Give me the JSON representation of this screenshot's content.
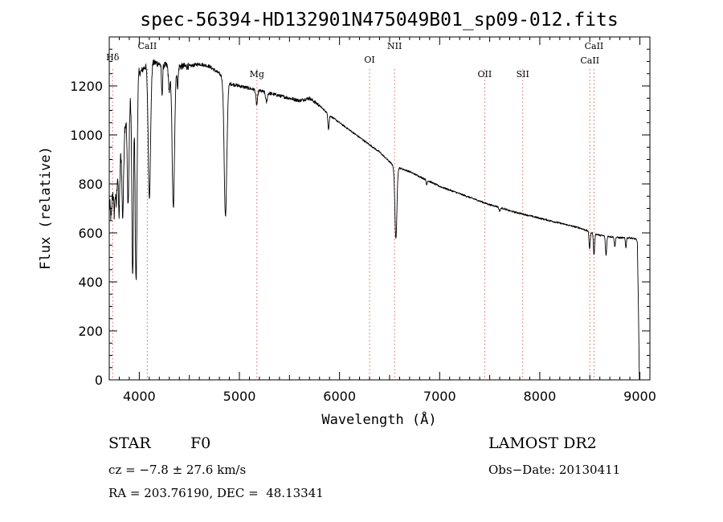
{
  "chart_data": {
    "type": "line",
    "title": "spec-56394-HD132901N475049B01_sp09-012.fits",
    "xlabel": "Wavelength (Å)",
    "ylabel": "Flux (relative)",
    "xlim": [
      3700,
      9100
    ],
    "ylim": [
      0,
      1400
    ],
    "x_ticks": [
      4000,
      5000,
      6000,
      7000,
      8000,
      9000
    ],
    "y_ticks": [
      0,
      200,
      400,
      600,
      800,
      1000,
      1200
    ],
    "grid": false,
    "line_color": "#000000",
    "marker_line_color": "#e06060",
    "continuum": [
      [
        3700,
        700
      ],
      [
        3800,
        900
      ],
      [
        3900,
        1150
      ],
      [
        4000,
        1250
      ],
      [
        4100,
        1300
      ],
      [
        4200,
        1290
      ],
      [
        4300,
        1280
      ],
      [
        4400,
        1280
      ],
      [
        4500,
        1280
      ],
      [
        4600,
        1290
      ],
      [
        4700,
        1280
      ],
      [
        4800,
        1250
      ],
      [
        4900,
        1210
      ],
      [
        5000,
        1200
      ],
      [
        5100,
        1190
      ],
      [
        5200,
        1180
      ],
      [
        5300,
        1170
      ],
      [
        5400,
        1160
      ],
      [
        5500,
        1150
      ],
      [
        5600,
        1140
      ],
      [
        5700,
        1150
      ],
      [
        5800,
        1120
      ],
      [
        5900,
        1080
      ],
      [
        6000,
        1050
      ],
      [
        6100,
        1020
      ],
      [
        6200,
        990
      ],
      [
        6300,
        960
      ],
      [
        6400,
        930
      ],
      [
        6500,
        890
      ],
      [
        6560,
        865
      ],
      [
        6600,
        865
      ],
      [
        6700,
        850
      ],
      [
        6800,
        830
      ],
      [
        6900,
        810
      ],
      [
        7000,
        790
      ],
      [
        7100,
        775
      ],
      [
        7200,
        760
      ],
      [
        7300,
        745
      ],
      [
        7400,
        730
      ],
      [
        7500,
        715
      ],
      [
        7600,
        705
      ],
      [
        7700,
        690
      ],
      [
        7800,
        680
      ],
      [
        7900,
        670
      ],
      [
        8000,
        660
      ],
      [
        8100,
        650
      ],
      [
        8200,
        640
      ],
      [
        8300,
        630
      ],
      [
        8400,
        620
      ],
      [
        8500,
        605
      ],
      [
        8600,
        590
      ],
      [
        8700,
        585
      ],
      [
        8800,
        580
      ],
      [
        8900,
        580
      ],
      [
        8960,
        575
      ],
      [
        8975,
        560
      ],
      [
        8985,
        300
      ],
      [
        8995,
        0
      ],
      [
        9000,
        0
      ]
    ],
    "absorption_lines": [
      [
        3720,
        80,
        6
      ],
      [
        3750,
        120,
        6
      ],
      [
        3770,
        130,
        6
      ],
      [
        3798,
        220,
        7
      ],
      [
        3835,
        320,
        8
      ],
      [
        3889,
        400,
        9
      ],
      [
        3934,
        780,
        8
      ],
      [
        3968,
        820,
        9
      ],
      [
        4101,
        550,
        12
      ],
      [
        4227,
        120,
        6
      ],
      [
        4300,
        100,
        8
      ],
      [
        4340,
        580,
        12
      ],
      [
        4383,
        80,
        6
      ],
      [
        4861,
        560,
        13
      ],
      [
        5173,
        60,
        8
      ],
      [
        5270,
        40,
        8
      ],
      [
        5890,
        60,
        6
      ],
      [
        6563,
        290,
        10
      ],
      [
        6870,
        20,
        5
      ],
      [
        7600,
        15,
        8
      ],
      [
        8498,
        70,
        6
      ],
      [
        8542,
        90,
        6
      ],
      [
        8662,
        80,
        6
      ],
      [
        8750,
        40,
        5
      ],
      [
        8860,
        40,
        5
      ]
    ],
    "line_markers": [
      {
        "label": "Hδ",
        "x": 3734
      },
      {
        "label": "CaII",
        "x": 4080
      },
      {
        "label": "Mg",
        "x": 5175
      },
      {
        "label": "OI",
        "x": 6300
      },
      {
        "label": "NII",
        "x": 6550
      },
      {
        "label": "OII",
        "x": 7450
      },
      {
        "label": "SII",
        "x": 7830
      },
      {
        "label": "CaII",
        "x": 8500
      },
      {
        "label": "CaII",
        "x": 8542
      }
    ]
  },
  "info": {
    "object_type": "STAR",
    "subclass": "F0",
    "survey": "LAMOST DR2",
    "cz": "cz = −7.8 ± 27.6 km/s",
    "obs_date": "Obs−Date: 20130411",
    "coords": "RA = 203.76190, DEC =  48.13341"
  }
}
